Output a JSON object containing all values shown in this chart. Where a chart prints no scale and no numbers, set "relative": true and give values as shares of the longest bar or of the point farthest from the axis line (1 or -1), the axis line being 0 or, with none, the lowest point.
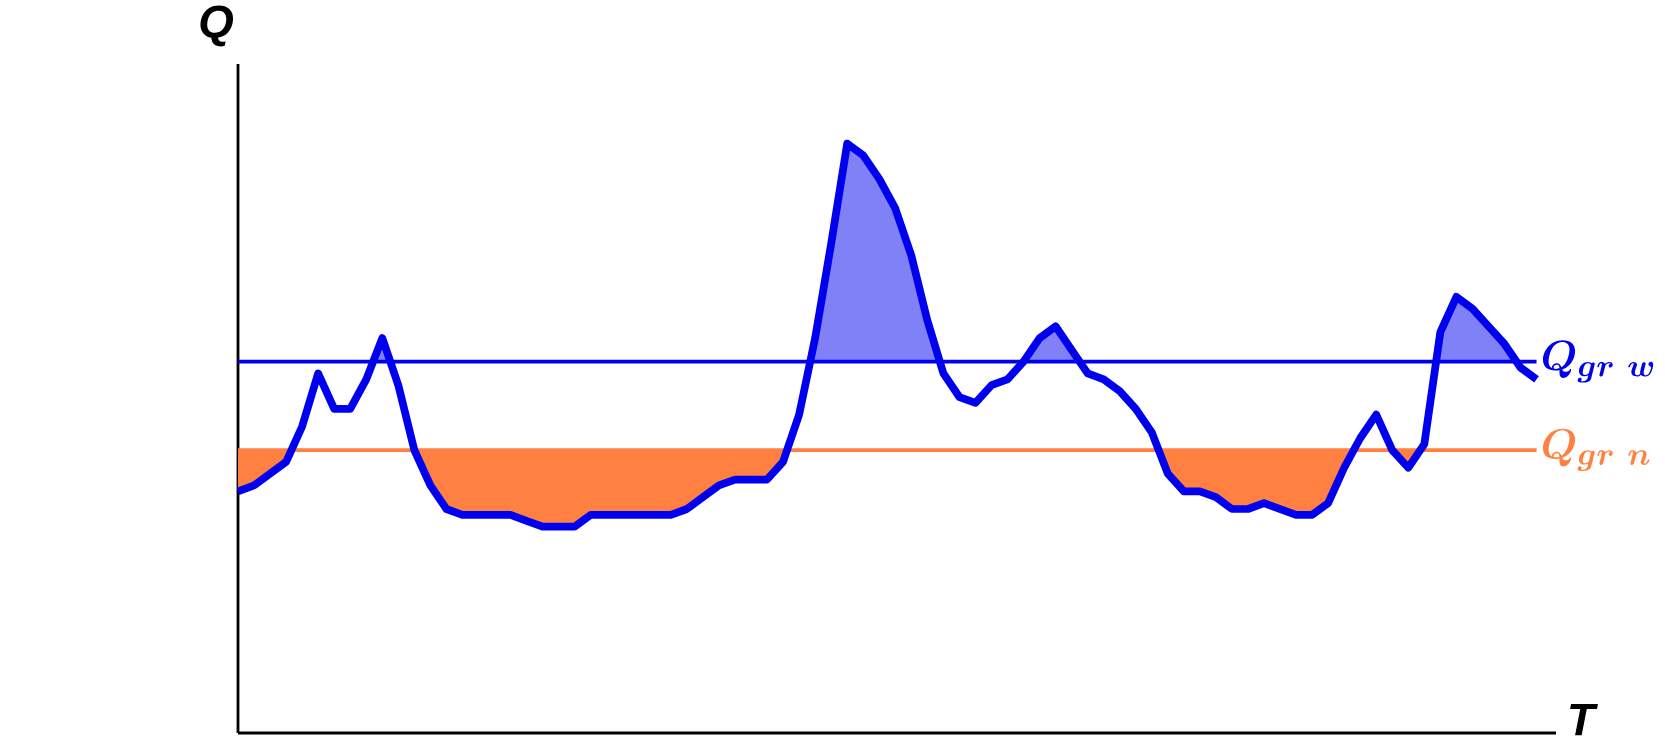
{
  "chart_data": {
    "type": "line",
    "relative": true,
    "xlabel": "T",
    "ylabel": "Q",
    "categories": [
      null,
      null,
      null,
      null,
      null,
      null,
      null,
      null,
      null,
      null,
      null,
      null,
      null,
      null,
      null,
      null,
      null,
      null,
      null,
      null,
      null,
      null,
      null,
      null,
      null,
      null,
      null,
      null,
      null,
      null,
      null,
      null,
      null,
      null,
      null,
      null,
      null,
      null,
      null,
      null,
      null,
      null,
      null,
      null,
      null,
      null,
      null,
      null,
      null,
      null,
      null,
      null,
      null,
      null,
      null,
      null,
      null,
      null,
      null,
      null,
      null,
      null,
      null,
      null,
      null,
      null,
      null,
      null,
      null,
      null,
      null,
      null,
      null,
      null,
      null,
      null,
      null,
      null,
      null,
      null,
      null,
      null
    ],
    "series": [
      {
        "color": "#0000ee",
        "values": [
          0.41,
          0.42,
          0.44,
          0.46,
          0.52,
          0.61,
          0.55,
          0.55,
          0.6,
          0.67,
          0.59,
          0.48,
          0.42,
          0.38,
          0.37,
          0.37,
          0.37,
          0.37,
          0.36,
          0.35,
          0.35,
          0.35,
          0.37,
          0.37,
          0.37,
          0.37,
          0.37,
          0.37,
          0.38,
          0.4,
          0.42,
          0.43,
          0.43,
          0.43,
          0.46,
          0.54,
          0.67,
          0.83,
          1.0,
          0.98,
          0.94,
          0.89,
          0.81,
          0.7,
          0.61,
          0.57,
          0.56,
          0.59,
          0.6,
          0.63,
          0.67,
          0.69,
          0.65,
          0.61,
          0.6,
          0.58,
          0.55,
          0.51,
          0.44,
          0.41,
          0.41,
          0.4,
          0.38,
          0.38,
          0.39,
          0.38,
          0.37,
          0.37,
          0.39,
          0.45,
          0.5,
          0.54,
          0.48,
          0.45,
          0.49,
          0.68,
          0.74,
          0.72,
          0.69,
          0.66,
          0.62,
          0.6
        ]
      }
    ],
    "ref_lines": [
      {
        "axis": "y",
        "value": 0.63,
        "label": "Q_{gr\\ w}",
        "color": "#0000ee"
      },
      {
        "axis": "y",
        "value": 0.48,
        "label": "Q_{gr\\ n}",
        "color": "#ff8040"
      }
    ],
    "marker": "none",
    "line_style": "solid"
  }
}
